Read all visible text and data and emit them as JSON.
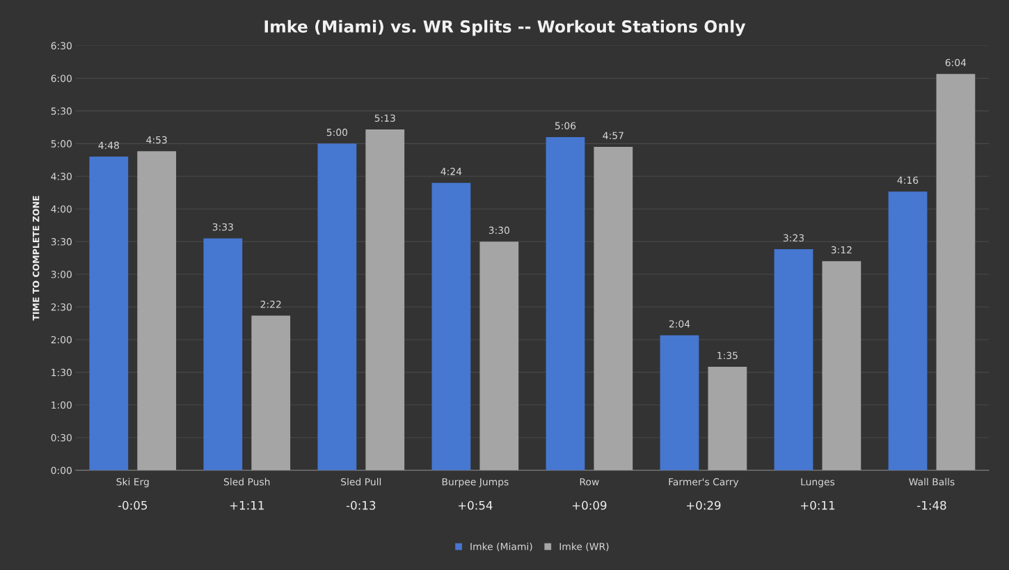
{
  "chart_data": {
    "type": "bar",
    "title": "Imke (Miami) vs. WR Splits -- Workout Stations Only",
    "ylabel": "TIME TO COMPLETE ZONE",
    "categories": [
      "Ski Erg",
      "Sled Push",
      "Sled Pull",
      "Burpee Jumps",
      "Row",
      "Farmer's Carry",
      "Lunges",
      "Wall Balls"
    ],
    "series": [
      {
        "name": "Imke (Miami)",
        "color": "#4677d1",
        "values": [
          288,
          213,
          300,
          264,
          306,
          124,
          203,
          256
        ],
        "value_labels": [
          "4:48",
          "3:33",
          "5:00",
          "4:24",
          "5:06",
          "2:04",
          "3:23",
          "4:16"
        ]
      },
      {
        "name": "Imke (WR)",
        "color": "#a5a5a5",
        "values": [
          293,
          142,
          313,
          210,
          297,
          95,
          192,
          364
        ],
        "value_labels": [
          "4:53",
          "2:22",
          "5:13",
          "3:30",
          "4:57",
          "1:35",
          "3:12",
          "6:04"
        ]
      }
    ],
    "ylim": [
      0,
      390
    ],
    "yticks": [
      {
        "value": 0,
        "label": "0:00"
      },
      {
        "value": 30,
        "label": "0:30"
      },
      {
        "value": 60,
        "label": "1:00"
      },
      {
        "value": 90,
        "label": "1:30"
      },
      {
        "value": 120,
        "label": "2:00"
      },
      {
        "value": 150,
        "label": "2:30"
      },
      {
        "value": 180,
        "label": "3:00"
      },
      {
        "value": 210,
        "label": "3:30"
      },
      {
        "value": 240,
        "label": "4:00"
      },
      {
        "value": 270,
        "label": "4:30"
      },
      {
        "value": 300,
        "label": "5:00"
      },
      {
        "value": 330,
        "label": "5:30"
      },
      {
        "value": 360,
        "label": "6:00"
      },
      {
        "value": 390,
        "label": "6:30"
      }
    ],
    "annotations": [
      "-0:05",
      "+1:11",
      "-0:13",
      "+0:54",
      "+0:09",
      "+0:29",
      "+0:11",
      "-1:48"
    ],
    "grid": "y",
    "legend": "bottom"
  }
}
